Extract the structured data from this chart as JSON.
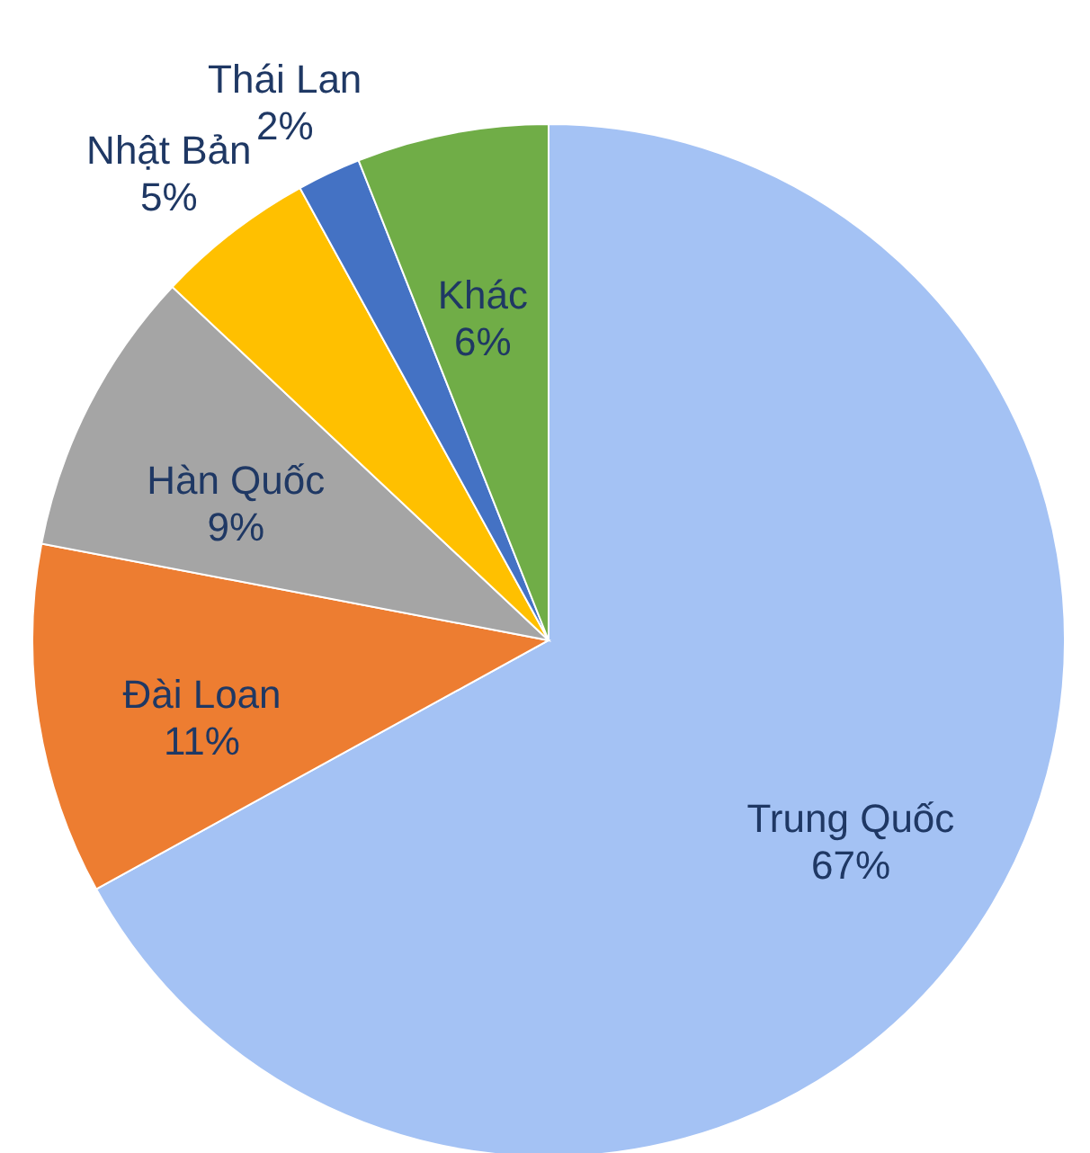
{
  "chart_data": {
    "type": "pie",
    "categories": [
      "Trung Quốc",
      "Đài Loan",
      "Hàn Quốc",
      "Nhật Bản",
      "Thái Lan",
      "Khác"
    ],
    "values": [
      67,
      11,
      9,
      5,
      2,
      6
    ],
    "value_labels": [
      "67%",
      "11%",
      "9%",
      "5%",
      "2%",
      "6%"
    ],
    "colors": [
      "#a4c2f4",
      "#ed7d31",
      "#a5a5a5",
      "#ffc000",
      "#4472c4",
      "#70ad47"
    ]
  }
}
